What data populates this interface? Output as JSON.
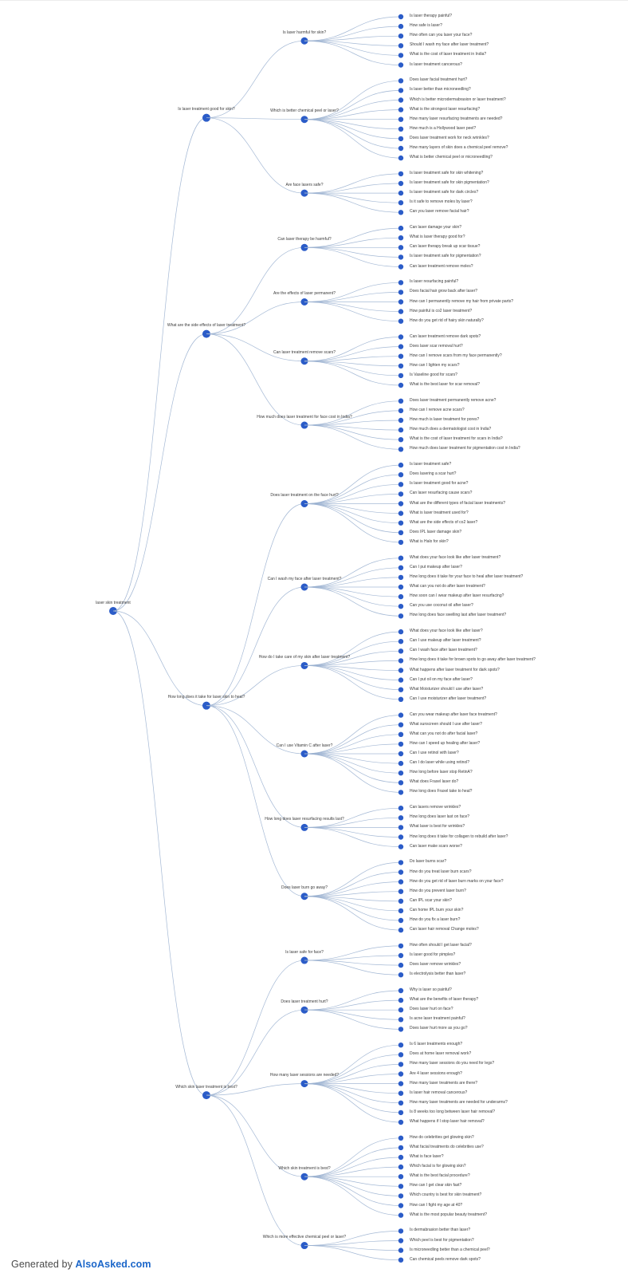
{
  "footer": {
    "prefix": "Generated by ",
    "brand": "AlsoAsked.com"
  },
  "colors": {
    "dot": "#2b5cc8",
    "edge": "#9bb1d0",
    "label": "#3b3b3b",
    "footer_gray": "#4a4a4a",
    "brand_blue": "#1b66c9"
  },
  "tree": {
    "root": "laser skin treatment",
    "branches": [
      {
        "label": "Is laser treatment good for skin?",
        "children": [
          {
            "label": "Is laser harmful for skin?",
            "questions": [
              "Is laser therapy painful?",
              "How safe is laser?",
              "How often can you laser your face?",
              "Should I wash my face after laser treatment?",
              "What is the cost of laser treatment in India?",
              "Is laser treatment cancerous?"
            ]
          },
          {
            "label": "Which is better chemical peel or laser?",
            "questions": [
              "Does laser facial treatment hurt?",
              "Is laser better than microneedling?",
              "Which is better microdermabrasion or laser treatment?",
              "What is the strongest laser resurfacing?",
              "How many laser resurfacing treatments are needed?",
              "How much is a Hollywood laser peel?",
              "Does laser treatment work for neck wrinkles?",
              "How many layers of skin does a chemical peel remove?",
              "What is better chemical peel or microneedling?"
            ]
          },
          {
            "label": "Are face lasers safe?",
            "questions": [
              "Is laser treatment safe for skin whitening?",
              "Is laser treatment safe for skin pigmentation?",
              "Is laser treatment safe for dark circles?",
              "Is it safe to remove moles by laser?",
              "Can you laser remove facial hair?"
            ]
          }
        ]
      },
      {
        "label": "What are the side effects of laser treatment?",
        "children": [
          {
            "label": "Can laser therapy be harmful?",
            "questions": [
              "Can laser damage your skin?",
              "What is laser therapy good for?",
              "Can laser therapy break up scar tissue?",
              "Is laser treatment safe for pigmentation?",
              "Can laser treatment remove moles?"
            ]
          },
          {
            "label": "Are the effects of laser permanent?",
            "questions": [
              "Is laser resurfacing painful?",
              "Does facial hair grow back after laser?",
              "How can I permanently remove my hair from private parts?",
              "How painful is co2 laser treatment?",
              "How do you get rid of hairy skin naturally?"
            ]
          },
          {
            "label": "Can laser treatment remove scars?",
            "questions": [
              "Can laser treatment remove dark spots?",
              "Does laser scar removal hurt?",
              "How can I remove scars from my face permanently?",
              "How can I lighten my scars?",
              "Is Vaseline good for scars?",
              "What is the best laser for scar removal?"
            ]
          },
          {
            "label": "How much does laser treatment for face cost in India?",
            "questions": [
              "Does laser treatment permanently remove acne?",
              "How can I remove acne scars?",
              "How much is laser treatment for pores?",
              "How much does a dermatologist cost in India?",
              "What is the cost of laser treatment for scars in India?",
              "How much does laser treatment for pigmentation cost in India?"
            ]
          }
        ]
      },
      {
        "label": "How long does it take for laser skin to heal?",
        "children": [
          {
            "label": "Does laser treatment on the face hurt?",
            "questions": [
              "Is laser treatment safe?",
              "Does lasering a scar hurt?",
              "Is laser treatment good for acne?",
              "Can laser resurfacing cause scars?",
              "What are the different types of facial laser treatments?",
              "What is laser treatment used for?",
              "What are the side effects of co2 laser?",
              "Does IPL laser damage skin?",
              "What is Halo for skin?"
            ]
          },
          {
            "label": "Can I wash my face after laser treatment?",
            "questions": [
              "What does your face look like after laser treatment?",
              "Can I put makeup after laser?",
              "How long does it take for your face to heal after laser treatment?",
              "What can you not do after laser treatment?",
              "How soon can I wear makeup after laser resurfacing?",
              "Can you use coconut oil after laser?",
              "How long does face swelling last after laser treatment?"
            ]
          },
          {
            "label": "How do I take care of my skin after laser treatment?",
            "questions": [
              "What does your face look like after laser?",
              "Can I use makeup after laser treatment?",
              "Can I wash face after laser treatment?",
              "How long does it take for brown spots to go away after laser treatment?",
              "What happens after laser treatment for dark spots?",
              "Can I put oil on my face after laser?",
              "What Moisturizer should I use after laser?",
              "Can I use moisturizer after laser treatment?"
            ]
          },
          {
            "label": "Can I use Vitamin C after laser?",
            "questions": [
              "Can you wear makeup after laser face treatment?",
              "What sunscreen should I use after laser?",
              "What can you not do after facial laser?",
              "How can I speed up healing after laser?",
              "Can I use retinol with laser?",
              "Can I do laser while using retinol?",
              "How long before laser stop RetinA?",
              "What does Fraxel laser do?",
              "How long does Fraxel take to heal?"
            ]
          },
          {
            "label": "How long does laser resurfacing results last?",
            "questions": [
              "Can lasers remove wrinkles?",
              "How long does laser last on face?",
              "What laser is best for wrinkles?",
              "How long does it take for collagen to rebuild after laser?",
              "Can laser make scars worse?"
            ]
          },
          {
            "label": "Does laser burn go away?",
            "questions": [
              "Do laser burns scar?",
              "How do you treat laser burn scars?",
              "How do you get rid of laser burn marks on your face?",
              "How do you prevent laser burn?",
              "Can IPL scar your skin?",
              "Can home IPL burn your skin?",
              "How do you fix a laser burn?",
              "Can laser hair removal Change moles?"
            ]
          }
        ]
      },
      {
        "label": "Which skin laser treatment is best?",
        "children": [
          {
            "label": "Is laser safe for face?",
            "questions": [
              "How often should I get laser facial?",
              "Is laser good for pimples?",
              "Does laser remove wrinkles?",
              "Is electrolysis better than laser?"
            ]
          },
          {
            "label": "Does laser treatment hurt?",
            "questions": [
              "Why is laser so painful?",
              "What are the benefits of laser therapy?",
              "Does laser hurt on face?",
              "Is acne laser treatment painful?",
              "Does laser hurt more as you go?"
            ]
          },
          {
            "label": "How many laser sessions are needed?",
            "questions": [
              "Is 6 laser treatments enough?",
              "Does at home laser removal work?",
              "How many laser sessions do you need for legs?",
              "Are 4 laser sessions enough?",
              "How many laser treatments are there?",
              "Is laser hair removal cancerous?",
              "How many laser treatments are needed for underarms?",
              "Is 8 weeks too long between laser hair removal?",
              "What happens if I stop laser hair removal?"
            ]
          },
          {
            "label": "Which skin treatment is best?",
            "questions": [
              "How do celebrities get glowing skin?",
              "What facial treatments do celebrities use?",
              "What is face laser?",
              "Which facial is for glowing skin?",
              "What is the best facial procedure?",
              "How can I get clear skin fast?",
              "Which country is best for skin treatment?",
              "How can I fight my age at 40?",
              "What is the most popular beauty treatment?"
            ]
          },
          {
            "label": "Which is more effective chemical peel or laser?",
            "questions": [
              "Is dermabrasion better than laser?",
              "Which peel is best for pigmentation?",
              "Is microneedling better than a chemical peel?",
              "Can chemical peels remove dark spots?"
            ]
          }
        ]
      }
    ]
  }
}
